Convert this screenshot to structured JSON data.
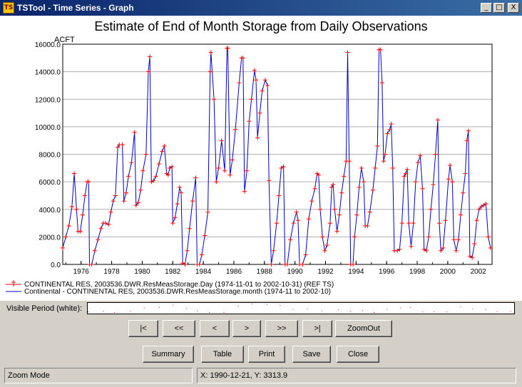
{
  "window": {
    "title": "TSTool - Time Series - Graph",
    "icon_text": "TS",
    "controls": [
      "_",
      "□",
      "X"
    ]
  },
  "chart_data": {
    "type": "line",
    "title": "Estimate of End of Month Storage from Daily Observations",
    "ylabel": "ACFT",
    "xlabel": "",
    "ylim": [
      0,
      16000
    ],
    "xlim": [
      1974.8,
      2002.9
    ],
    "y_ticks": [
      "0.0",
      "2000.0",
      "4000.0",
      "6000.0",
      "8000.0",
      "10000.0",
      "12000.0",
      "14000.0",
      "16000.0"
    ],
    "x_ticks": [
      "1976",
      "1978",
      "1980",
      "1982",
      "1984",
      "1986",
      "1988",
      "1990",
      "1992",
      "1994",
      "1996",
      "1998",
      "2000",
      "2002"
    ],
    "grid": true,
    "colors": {
      "daily": "#ff0000",
      "monthly": "#0000cc"
    },
    "series": [
      {
        "name": "CONTINENTAL RES, 2003536.DWR.ResMeasStorage.Day (1974-11-01 to 2002-10-31) (REF TS)",
        "marker": "+",
        "color": "#ff0000"
      },
      {
        "name": "Continental - CONTINENTAL RES, 2003536.DWR.ResMeasStorage.month (1974-11 to 2002-10)",
        "color": "#0000cc"
      }
    ],
    "points": [
      [
        1974.8,
        1200
      ],
      [
        1975.0,
        2000
      ],
      [
        1975.2,
        2800
      ],
      [
        1975.4,
        4200
      ],
      [
        1975.55,
        6600
      ],
      [
        1975.7,
        4000
      ],
      [
        1975.8,
        2400
      ],
      [
        1975.95,
        2400
      ],
      [
        1976.1,
        3600
      ],
      [
        1976.25,
        5000
      ],
      [
        1976.4,
        6000
      ],
      [
        1976.5,
        6000
      ],
      [
        1976.55,
        0
      ],
      [
        1976.7,
        0
      ],
      [
        1976.9,
        1000
      ],
      [
        1977.1,
        1800
      ],
      [
        1977.3,
        2600
      ],
      [
        1977.45,
        3000
      ],
      [
        1977.6,
        3000
      ],
      [
        1977.8,
        2900
      ],
      [
        1977.95,
        3800
      ],
      [
        1978.1,
        4600
      ],
      [
        1978.25,
        5000
      ],
      [
        1978.4,
        8500
      ],
      [
        1978.5,
        8700
      ],
      [
        1978.7,
        8700
      ],
      [
        1978.8,
        4600
      ],
      [
        1978.95,
        5200
      ],
      [
        1979.1,
        6400
      ],
      [
        1979.3,
        7400
      ],
      [
        1979.5,
        9600
      ],
      [
        1979.6,
        4300
      ],
      [
        1979.75,
        4500
      ],
      [
        1979.9,
        5400
      ],
      [
        1980.05,
        6800
      ],
      [
        1980.25,
        8000
      ],
      [
        1980.4,
        14000
      ],
      [
        1980.5,
        15100
      ],
      [
        1980.6,
        6000
      ],
      [
        1980.75,
        6100
      ],
      [
        1980.9,
        6400
      ],
      [
        1981.1,
        7300
      ],
      [
        1981.3,
        8200
      ],
      [
        1981.45,
        8600
      ],
      [
        1981.6,
        6600
      ],
      [
        1981.7,
        6500
      ],
      [
        1981.8,
        7000
      ],
      [
        1981.95,
        7100
      ],
      [
        1982.0,
        3000
      ],
      [
        1982.15,
        3400
      ],
      [
        1982.3,
        4400
      ],
      [
        1982.45,
        5600
      ],
      [
        1982.55,
        5200
      ],
      [
        1982.65,
        100
      ],
      [
        1982.8,
        0
      ],
      [
        1982.95,
        1000
      ],
      [
        1983.1,
        2600
      ],
      [
        1983.3,
        4600
      ],
      [
        1983.5,
        6300
      ],
      [
        1983.6,
        0
      ],
      [
        1983.75,
        0
      ],
      [
        1983.9,
        700
      ],
      [
        1984.1,
        2100
      ],
      [
        1984.3,
        3800
      ],
      [
        1984.45,
        14000
      ],
      [
        1984.5,
        15400
      ],
      [
        1984.7,
        12000
      ],
      [
        1984.85,
        6000
      ],
      [
        1985.0,
        7000
      ],
      [
        1985.2,
        9000
      ],
      [
        1985.4,
        6800
      ],
      [
        1985.55,
        15700
      ],
      [
        1985.6,
        15700
      ],
      [
        1985.75,
        6500
      ],
      [
        1985.9,
        7600
      ],
      [
        1986.1,
        9800
      ],
      [
        1986.35,
        13200
      ],
      [
        1986.5,
        15000
      ],
      [
        1986.6,
        15000
      ],
      [
        1986.7,
        5300
      ],
      [
        1986.85,
        6800
      ],
      [
        1987.0,
        10400
      ],
      [
        1987.15,
        12000
      ],
      [
        1987.35,
        14100
      ],
      [
        1987.45,
        13400
      ],
      [
        1987.55,
        9200
      ],
      [
        1987.7,
        11000
      ],
      [
        1987.85,
        12600
      ],
      [
        1988.05,
        13400
      ],
      [
        1988.2,
        13000
      ],
      [
        1988.3,
        6100
      ],
      [
        1988.45,
        0
      ],
      [
        1988.6,
        1000
      ],
      [
        1988.8,
        3000
      ],
      [
        1988.95,
        5000
      ],
      [
        1989.1,
        7000
      ],
      [
        1989.25,
        7100
      ],
      [
        1989.35,
        0
      ],
      [
        1989.5,
        0
      ],
      [
        1989.7,
        1800
      ],
      [
        1989.9,
        3000
      ],
      [
        1990.1,
        3800
      ],
      [
        1990.2,
        3200
      ],
      [
        1990.3,
        0
      ],
      [
        1990.5,
        0
      ],
      [
        1990.7,
        700
      ],
      [
        1990.9,
        3300
      ],
      [
        1991.1,
        4600
      ],
      [
        1991.3,
        5500
      ],
      [
        1991.45,
        6600
      ],
      [
        1991.55,
        6500
      ],
      [
        1991.65,
        4000
      ],
      [
        1991.8,
        2000
      ],
      [
        1991.95,
        1000
      ],
      [
        1992.1,
        1400
      ],
      [
        1992.3,
        3000
      ],
      [
        1992.4,
        5600
      ],
      [
        1992.5,
        5800
      ],
      [
        1992.6,
        4000
      ],
      [
        1992.75,
        2400
      ],
      [
        1992.9,
        3600
      ],
      [
        1993.05,
        5200
      ],
      [
        1993.2,
        6400
      ],
      [
        1993.35,
        7500
      ],
      [
        1993.45,
        15400
      ],
      [
        1993.55,
        7500
      ],
      [
        1993.65,
        0
      ],
      [
        1993.8,
        0
      ],
      [
        1993.9,
        2000
      ],
      [
        1994.05,
        3600
      ],
      [
        1994.2,
        5600
      ],
      [
        1994.35,
        7000
      ],
      [
        1994.5,
        6000
      ],
      [
        1994.6,
        2800
      ],
      [
        1994.75,
        2800
      ],
      [
        1994.9,
        3800
      ],
      [
        1995.1,
        5400
      ],
      [
        1995.25,
        7000
      ],
      [
        1995.4,
        8600
      ],
      [
        1995.5,
        15600
      ],
      [
        1995.6,
        15600
      ],
      [
        1995.7,
        13200
      ],
      [
        1995.8,
        7500
      ],
      [
        1995.9,
        8000
      ],
      [
        1996.05,
        9500
      ],
      [
        1996.2,
        9800
      ],
      [
        1996.3,
        10200
      ],
      [
        1996.4,
        7000
      ],
      [
        1996.5,
        1000
      ],
      [
        1996.7,
        1000
      ],
      [
        1996.85,
        1100
      ],
      [
        1997.0,
        3000
      ],
      [
        1997.15,
        6400
      ],
      [
        1997.25,
        6600
      ],
      [
        1997.35,
        6900
      ],
      [
        1997.45,
        3000
      ],
      [
        1997.6,
        1300
      ],
      [
        1997.75,
        3000
      ],
      [
        1997.9,
        6000
      ],
      [
        1998.05,
        7400
      ],
      [
        1998.2,
        7900
      ],
      [
        1998.35,
        5500
      ],
      [
        1998.45,
        1100
      ],
      [
        1998.6,
        1000
      ],
      [
        1998.75,
        2000
      ],
      [
        1998.9,
        4000
      ],
      [
        1999.05,
        5800
      ],
      [
        1999.2,
        8000
      ],
      [
        1999.35,
        10500
      ],
      [
        1999.45,
        3000
      ],
      [
        1999.55,
        1000
      ],
      [
        1999.7,
        1200
      ],
      [
        1999.85,
        3200
      ],
      [
        2000.05,
        6200
      ],
      [
        2000.15,
        7200
      ],
      [
        2000.3,
        6000
      ],
      [
        2000.4,
        1800
      ],
      [
        2000.55,
        1000
      ],
      [
        2000.7,
        1800
      ],
      [
        2000.85,
        3600
      ],
      [
        2001.0,
        5200
      ],
      [
        2001.15,
        6600
      ],
      [
        2001.25,
        9000
      ],
      [
        2001.35,
        9700
      ],
      [
        2001.45,
        600
      ],
      [
        2001.6,
        500
      ],
      [
        2001.75,
        1500
      ],
      [
        2001.9,
        3200
      ],
      [
        2002.05,
        4000
      ],
      [
        2002.2,
        4200
      ],
      [
        2002.35,
        4300
      ],
      [
        2002.5,
        4400
      ],
      [
        2002.65,
        2000
      ],
      [
        2002.8,
        1200
      ]
    ]
  },
  "visible_period": {
    "label": "Visible Period (white):"
  },
  "nav_buttons": [
    "|<",
    "<<",
    "<",
    ">",
    ">>",
    ">|",
    "ZoomOut"
  ],
  "action_buttons": [
    "Summary",
    "Table",
    "Print",
    "Save",
    "Close"
  ],
  "status": {
    "mode": "Zoom Mode",
    "coords": "X:  1990-12-21,  Y:  3313.9"
  }
}
